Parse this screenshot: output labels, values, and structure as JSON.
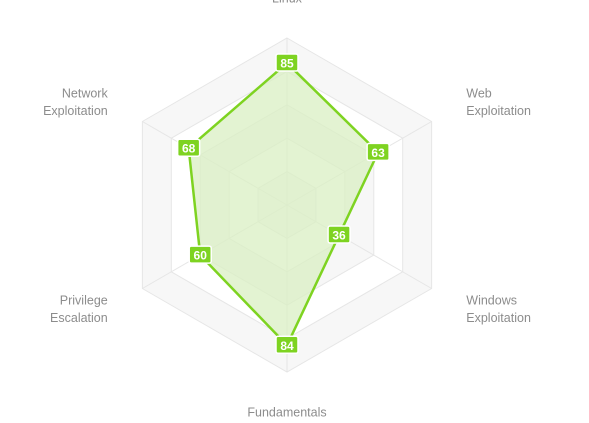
{
  "chart_data": {
    "type": "radar",
    "title": "",
    "max": 100,
    "levels": 5,
    "axes": [
      {
        "label_lines": [
          "Linux"
        ],
        "value": 85
      },
      {
        "label_lines": [
          "Web",
          "Exploitation"
        ],
        "value": 63
      },
      {
        "label_lines": [
          "Windows",
          "Exploitation"
        ],
        "value": 36
      },
      {
        "label_lines": [
          "Fundamentals"
        ],
        "value": 84
      },
      {
        "label_lines": [
          "Privilege",
          "Escalation"
        ],
        "value": 60
      },
      {
        "label_lines": [
          "Network",
          "Exploitation"
        ],
        "value": 68
      }
    ],
    "colors": {
      "series_stroke": "#7ed321",
      "series_fill": "#d9efc3",
      "badge_fill": "#7ed321",
      "grid_stroke": "#e6e6e6",
      "grid_fill_outer": "#ffffff",
      "grid_fill_inner": "#f7f7f7",
      "axis_label": "#8c8c8c"
    },
    "grid": true
  }
}
